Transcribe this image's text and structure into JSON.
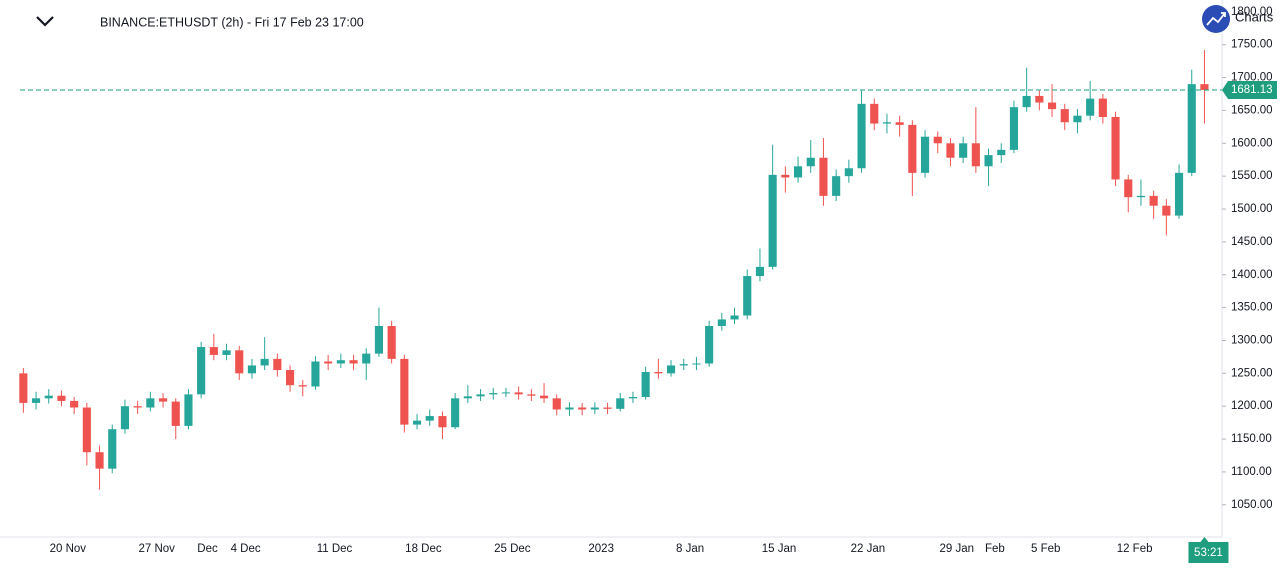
{
  "chart_data": {
    "type": "candlestick",
    "title": "BINANCE:ETHUSDT (2h) - Fri 17 Feb 23 17:00",
    "brand": "Charts",
    "countdown": "53:21",
    "up_color": "#26a69a",
    "down_color": "#ef5350",
    "last_price_color": "#1e9e7e",
    "categories": [
      null,
      null,
      null,
      null,
      "20 Nov",
      null,
      null,
      null,
      null,
      null,
      null,
      "27 Nov",
      null,
      null,
      null,
      "Dec",
      null,
      null,
      "4 Dec",
      null,
      null,
      null,
      null,
      null,
      null,
      "11 Dec",
      null,
      null,
      null,
      null,
      null,
      null,
      "18 Dec",
      null,
      null,
      null,
      null,
      null,
      null,
      "25 Dec",
      null,
      null,
      null,
      null,
      null,
      null,
      "2023",
      null,
      null,
      null,
      null,
      null,
      null,
      "8 Jan",
      null,
      null,
      null,
      null,
      null,
      null,
      "15 Jan",
      null,
      null,
      null,
      null,
      null,
      null,
      "22 Jan",
      null,
      null,
      null,
      null,
      null,
      null,
      "29 Jan",
      null,
      null,
      "Feb",
      null,
      null,
      null,
      "5 Feb",
      null,
      null,
      null,
      null,
      null,
      null,
      "12 Feb",
      null,
      null,
      null,
      null,
      null
    ],
    "open": [
      1250,
      1205,
      1212,
      1216,
      1208,
      1198,
      1130,
      1105,
      1165,
      1200,
      1198,
      1212,
      1207,
      1170,
      1218,
      1290,
      1278,
      1285,
      1250,
      1262,
      1272,
      1255,
      1232,
      1230,
      1268,
      1265,
      1270,
      1265,
      1280,
      1322,
      1272,
      1172,
      1178,
      1185,
      1168,
      1212,
      1215,
      1218,
      1220,
      1221,
      1218,
      1216,
      1212,
      1195,
      1198,
      1195,
      1198,
      1196,
      1212,
      1214,
      1252,
      1250,
      1262,
      1264,
      1265,
      1322,
      1332,
      1338,
      1398,
      1412,
      1552,
      1548,
      1565,
      1578,
      1520,
      1550,
      1562,
      1660,
      1630,
      1632,
      1628,
      1555,
      1610,
      1600,
      1578,
      1600,
      1565,
      1582,
      1590,
      1655,
      1672,
      1662,
      1652,
      1632,
      1642,
      1668,
      1640,
      1545,
      1518,
      1520,
      1505,
      1490,
      1555,
      1690
    ],
    "high": [
      1258,
      1222,
      1226,
      1224,
      1214,
      1205,
      1140,
      1172,
      1210,
      1208,
      1222,
      1220,
      1212,
      1226,
      1298,
      1310,
      1295,
      1292,
      1272,
      1305,
      1280,
      1262,
      1240,
      1276,
      1278,
      1280,
      1278,
      1288,
      1350,
      1330,
      1278,
      1188,
      1195,
      1192,
      1220,
      1232,
      1226,
      1228,
      1228,
      1230,
      1226,
      1235,
      1218,
      1206,
      1205,
      1206,
      1205,
      1220,
      1222,
      1260,
      1272,
      1270,
      1272,
      1275,
      1330,
      1342,
      1350,
      1408,
      1440,
      1598,
      1565,
      1580,
      1605,
      1608,
      1560,
      1575,
      1680,
      1668,
      1645,
      1642,
      1635,
      1620,
      1618,
      1608,
      1610,
      1655,
      1592,
      1600,
      1665,
      1715,
      1680,
      1690,
      1660,
      1652,
      1695,
      1675,
      1648,
      1552,
      1545,
      1528,
      1515,
      1568,
      1712,
      1742
    ],
    "low": [
      1190,
      1195,
      1204,
      1200,
      1188,
      1110,
      1073,
      1098,
      1158,
      1188,
      1192,
      1198,
      1150,
      1165,
      1212,
      1270,
      1270,
      1240,
      1242,
      1255,
      1245,
      1222,
      1215,
      1225,
      1255,
      1258,
      1255,
      1240,
      1275,
      1265,
      1160,
      1165,
      1170,
      1150,
      1165,
      1205,
      1208,
      1210,
      1214,
      1210,
      1208,
      1205,
      1186,
      1185,
      1186,
      1188,
      1188,
      1192,
      1205,
      1210,
      1242,
      1245,
      1255,
      1255,
      1260,
      1315,
      1325,
      1332,
      1390,
      1408,
      1525,
      1540,
      1555,
      1505,
      1512,
      1540,
      1555,
      1620,
      1615,
      1610,
      1520,
      1548,
      1585,
      1565,
      1570,
      1555,
      1535,
      1570,
      1585,
      1648,
      1650,
      1640,
      1620,
      1615,
      1635,
      1630,
      1535,
      1495,
      1505,
      1485,
      1460,
      1485,
      1550,
      1630
    ],
    "close": [
      1205,
      1212,
      1216,
      1208,
      1198,
      1130,
      1105,
      1165,
      1200,
      1198,
      1212,
      1207,
      1170,
      1218,
      1290,
      1278,
      1285,
      1250,
      1262,
      1272,
      1255,
      1232,
      1230,
      1268,
      1265,
      1270,
      1265,
      1280,
      1322,
      1272,
      1172,
      1178,
      1185,
      1168,
      1212,
      1215,
      1218,
      1220,
      1221,
      1218,
      1216,
      1212,
      1195,
      1198,
      1195,
      1198,
      1196,
      1212,
      1214,
      1252,
      1250,
      1262,
      1264,
      1265,
      1322,
      1332,
      1338,
      1398,
      1412,
      1552,
      1548,
      1565,
      1578,
      1520,
      1550,
      1562,
      1660,
      1630,
      1632,
      1628,
      1555,
      1610,
      1600,
      1578,
      1600,
      1565,
      1582,
      1590,
      1655,
      1672,
      1662,
      1652,
      1632,
      1642,
      1668,
      1640,
      1545,
      1518,
      1520,
      1505,
      1490,
      1555,
      1690,
      1681.13
    ],
    "ylim": [
      1001,
      1818
    ],
    "yticks": [
      {
        "value": 1050,
        "label": "1050.00"
      },
      {
        "value": 1100,
        "label": "1100.00"
      },
      {
        "value": 1150,
        "label": "1150.00"
      },
      {
        "value": 1200,
        "label": "1200.00"
      },
      {
        "value": 1250,
        "label": "1250.00"
      },
      {
        "value": 1300,
        "label": "1300.00"
      },
      {
        "value": 1350,
        "label": "1350.00"
      },
      {
        "value": 1400,
        "label": "1400.00"
      },
      {
        "value": 1450,
        "label": "1450.00"
      },
      {
        "value": 1500,
        "label": "1500.00"
      },
      {
        "value": 1550,
        "label": "1550.00"
      },
      {
        "value": 1600,
        "label": "1600.00"
      },
      {
        "value": 1650,
        "label": "1650.00"
      },
      {
        "value": 1700,
        "label": "1700.00"
      },
      {
        "value": 1750,
        "label": "1750.00"
      },
      {
        "value": 1800,
        "label": "1800.00"
      }
    ]
  }
}
